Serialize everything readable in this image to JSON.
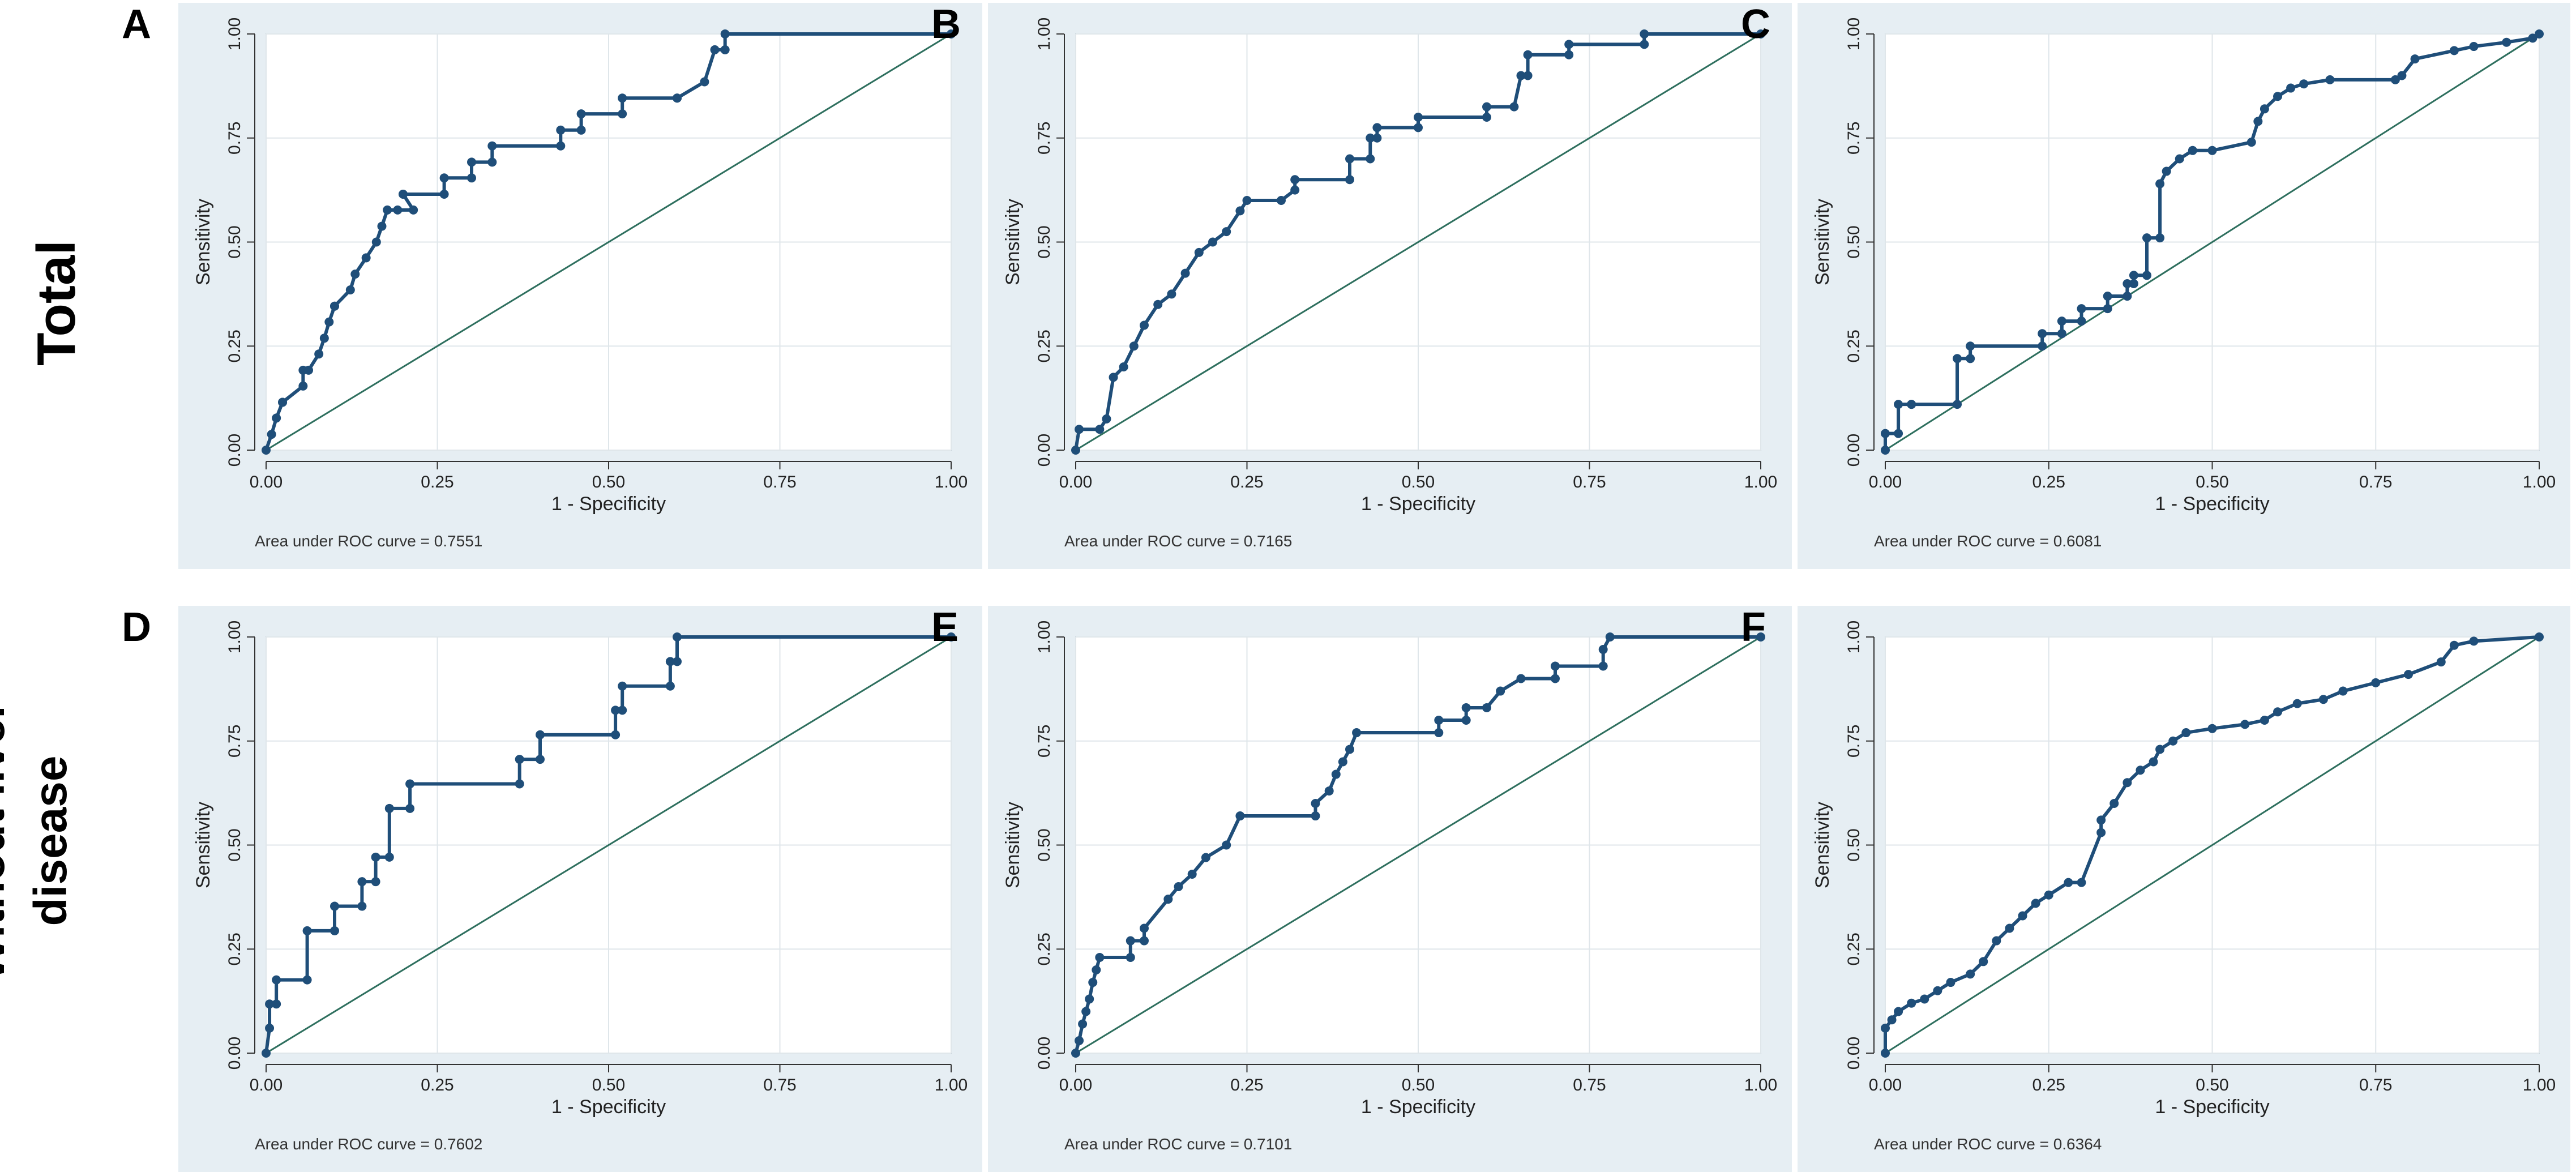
{
  "figure": {
    "row_labels": {
      "top": "Total",
      "bottom_line1": "Without liver",
      "bottom_line2": "disease"
    },
    "colors": {
      "panel_bg": "#e6eef3",
      "plot_bg": "#ffffff",
      "grid": "#dfe6ea",
      "axis": "#333333",
      "curve": "#1f4e79",
      "reference": "#2e6f5e"
    },
    "x_tick_labels": [
      "0.00",
      "0.25",
      "0.50",
      "0.75",
      "1.00"
    ],
    "y_tick_labels": [
      "0.00",
      "0.25",
      "0.50",
      "0.75",
      "1.00"
    ]
  },
  "chart_data": [
    {
      "panel": "A",
      "row": "Total",
      "type": "line",
      "title": "",
      "xlabel": "1 - Specificity",
      "ylabel": "Sensitivity",
      "xlim": [
        0,
        1
      ],
      "ylim": [
        0,
        1
      ],
      "grid": true,
      "auc_label": "Area under ROC curve = 0.7551",
      "series": [
        {
          "name": "ROC",
          "x": [
            0,
            0.008,
            0.015,
            0.024,
            0.024,
            0.054,
            0.054,
            0.062,
            0.077,
            0.085,
            0.092,
            0.1,
            0.1,
            0.123,
            0.13,
            0.146,
            0.161,
            0.169,
            0.177,
            0.192,
            0.215,
            0.2,
            0.2,
            0.26,
            0.26,
            0.3,
            0.3,
            0.33,
            0.33,
            0.43,
            0.43,
            0.46,
            0.46,
            0.52,
            0.52,
            0.6,
            0.6,
            0.64,
            0.655,
            0.67,
            0.67,
            1.0
          ],
          "y": [
            0,
            0.038,
            0.077,
            0.115,
            0.115,
            0.154,
            0.192,
            0.192,
            0.231,
            0.269,
            0.308,
            0.346,
            0.346,
            0.385,
            0.423,
            0.462,
            0.5,
            0.538,
            0.577,
            0.577,
            0.577,
            0.615,
            0.615,
            0.615,
            0.654,
            0.654,
            0.692,
            0.692,
            0.731,
            0.731,
            0.769,
            0.769,
            0.808,
            0.808,
            0.846,
            0.846,
            0.846,
            0.885,
            0.962,
            0.962,
            1.0,
            1.0
          ]
        },
        {
          "name": "Reference",
          "x": [
            0,
            1
          ],
          "y": [
            0,
            1
          ]
        }
      ]
    },
    {
      "panel": "B",
      "row": "Total",
      "type": "line",
      "title": "",
      "xlabel": "1 - Specificity",
      "ylabel": "Sensitivity",
      "xlim": [
        0,
        1
      ],
      "ylim": [
        0,
        1
      ],
      "grid": true,
      "auc_label": "Area under ROC curve = 0.7165",
      "series": [
        {
          "name": "ROC",
          "x": [
            0,
            0.005,
            0.035,
            0.045,
            0.055,
            0.07,
            0.085,
            0.1,
            0.12,
            0.14,
            0.16,
            0.18,
            0.2,
            0.22,
            0.24,
            0.25,
            0.3,
            0.32,
            0.32,
            0.4,
            0.4,
            0.43,
            0.43,
            0.44,
            0.44,
            0.5,
            0.5,
            0.6,
            0.6,
            0.64,
            0.65,
            0.66,
            0.66,
            0.72,
            0.72,
            0.83,
            0.83,
            1.0
          ],
          "y": [
            0,
            0.05,
            0.05,
            0.075,
            0.175,
            0.2,
            0.25,
            0.3,
            0.35,
            0.375,
            0.425,
            0.475,
            0.5,
            0.525,
            0.575,
            0.6,
            0.6,
            0.625,
            0.65,
            0.65,
            0.7,
            0.7,
            0.75,
            0.75,
            0.775,
            0.775,
            0.8,
            0.8,
            0.825,
            0.825,
            0.9,
            0.9,
            0.95,
            0.95,
            0.975,
            0.975,
            1.0,
            1.0
          ]
        },
        {
          "name": "Reference",
          "x": [
            0,
            1
          ],
          "y": [
            0,
            1
          ]
        }
      ]
    },
    {
      "panel": "C",
      "row": "Total",
      "type": "line",
      "title": "",
      "xlabel": "1 - Specificity",
      "ylabel": "Sensitivity",
      "xlim": [
        0,
        1
      ],
      "ylim": [
        0,
        1
      ],
      "grid": true,
      "auc_label": "Area under ROC curve = 0.6081",
      "series": [
        {
          "name": "ROC",
          "x": [
            0,
            0,
            0.02,
            0.02,
            0.04,
            0.04,
            0.11,
            0.11,
            0.13,
            0.13,
            0.24,
            0.24,
            0.27,
            0.27,
            0.3,
            0.3,
            0.34,
            0.34,
            0.37,
            0.37,
            0.38,
            0.38,
            0.4,
            0.4,
            0.42,
            0.42,
            0.43,
            0.45,
            0.47,
            0.5,
            0.56,
            0.57,
            0.58,
            0.6,
            0.62,
            0.64,
            0.68,
            0.78,
            0.79,
            0.81,
            0.87,
            0.9,
            0.95,
            0.99,
            1.0
          ],
          "y": [
            0,
            0.04,
            0.04,
            0.11,
            0.11,
            0.11,
            0.11,
            0.22,
            0.22,
            0.25,
            0.25,
            0.28,
            0.28,
            0.31,
            0.31,
            0.34,
            0.34,
            0.37,
            0.37,
            0.4,
            0.4,
            0.42,
            0.42,
            0.51,
            0.51,
            0.64,
            0.67,
            0.7,
            0.72,
            0.72,
            0.74,
            0.79,
            0.82,
            0.85,
            0.87,
            0.88,
            0.89,
            0.89,
            0.9,
            0.94,
            0.96,
            0.97,
            0.98,
            0.99,
            1.0
          ]
        },
        {
          "name": "Reference",
          "x": [
            0,
            1
          ],
          "y": [
            0,
            1
          ]
        }
      ]
    },
    {
      "panel": "D",
      "row": "Without liver disease",
      "type": "line",
      "title": "",
      "xlabel": "1 - Specificity",
      "ylabel": "Sensitivity",
      "xlim": [
        0,
        1
      ],
      "ylim": [
        0,
        1
      ],
      "grid": true,
      "auc_label": "Area under ROC curve = 0.7602",
      "series": [
        {
          "name": "ROC",
          "x": [
            0,
            0.005,
            0.005,
            0.015,
            0.015,
            0.06,
            0.06,
            0.1,
            0.1,
            0.14,
            0.14,
            0.16,
            0.16,
            0.18,
            0.18,
            0.21,
            0.21,
            0.37,
            0.37,
            0.4,
            0.4,
            0.51,
            0.51,
            0.52,
            0.52,
            0.59,
            0.59,
            0.6,
            0.6,
            1.0
          ],
          "y": [
            0,
            0.06,
            0.118,
            0.118,
            0.176,
            0.176,
            0.294,
            0.294,
            0.353,
            0.353,
            0.412,
            0.412,
            0.471,
            0.471,
            0.588,
            0.588,
            0.647,
            0.647,
            0.706,
            0.706,
            0.765,
            0.765,
            0.824,
            0.824,
            0.882,
            0.882,
            0.941,
            0.941,
            1.0,
            1.0
          ]
        },
        {
          "name": "Reference",
          "x": [
            0,
            1
          ],
          "y": [
            0,
            1
          ]
        }
      ]
    },
    {
      "panel": "E",
      "row": "Without liver disease",
      "type": "line",
      "title": "",
      "xlabel": "1 - Specificity",
      "ylabel": "Sensitivity",
      "xlim": [
        0,
        1
      ],
      "ylim": [
        0,
        1
      ],
      "grid": true,
      "auc_label": "Area under ROC curve = 0.7101",
      "series": [
        {
          "name": "ROC",
          "x": [
            0,
            0.005,
            0.01,
            0.015,
            0.02,
            0.025,
            0.03,
            0.035,
            0.08,
            0.08,
            0.1,
            0.1,
            0.135,
            0.15,
            0.17,
            0.19,
            0.22,
            0.24,
            0.35,
            0.35,
            0.37,
            0.38,
            0.39,
            0.4,
            0.41,
            0.53,
            0.53,
            0.57,
            0.57,
            0.6,
            0.62,
            0.65,
            0.7,
            0.7,
            0.77,
            0.77,
            0.78,
            1.0
          ],
          "y": [
            0,
            0.03,
            0.07,
            0.1,
            0.13,
            0.17,
            0.2,
            0.23,
            0.23,
            0.27,
            0.27,
            0.3,
            0.37,
            0.4,
            0.43,
            0.47,
            0.5,
            0.57,
            0.57,
            0.6,
            0.63,
            0.67,
            0.7,
            0.73,
            0.77,
            0.77,
            0.8,
            0.8,
            0.83,
            0.83,
            0.87,
            0.9,
            0.9,
            0.93,
            0.93,
            0.97,
            1.0,
            1.0
          ]
        },
        {
          "name": "Reference",
          "x": [
            0,
            1
          ],
          "y": [
            0,
            1
          ]
        }
      ]
    },
    {
      "panel": "F",
      "row": "Without liver disease",
      "type": "line",
      "title": "",
      "xlabel": "1 - Specificity",
      "ylabel": "Sensitivity",
      "xlim": [
        0,
        1
      ],
      "ylim": [
        0,
        1
      ],
      "grid": true,
      "auc_label": "Area under ROC curve = 0.6364",
      "series": [
        {
          "name": "ROC",
          "x": [
            0,
            0,
            0.01,
            0.02,
            0.04,
            0.06,
            0.08,
            0.1,
            0.13,
            0.15,
            0.17,
            0.19,
            0.21,
            0.23,
            0.25,
            0.28,
            0.3,
            0.33,
            0.33,
            0.35,
            0.37,
            0.39,
            0.41,
            0.42,
            0.44,
            0.46,
            0.5,
            0.55,
            0.58,
            0.6,
            0.63,
            0.67,
            0.7,
            0.75,
            0.8,
            0.85,
            0.87,
            0.9,
            1.0
          ],
          "y": [
            0,
            0.06,
            0.08,
            0.1,
            0.12,
            0.13,
            0.15,
            0.17,
            0.19,
            0.22,
            0.27,
            0.3,
            0.33,
            0.36,
            0.38,
            0.41,
            0.41,
            0.53,
            0.56,
            0.6,
            0.65,
            0.68,
            0.7,
            0.73,
            0.75,
            0.77,
            0.78,
            0.79,
            0.8,
            0.82,
            0.84,
            0.85,
            0.87,
            0.89,
            0.91,
            0.94,
            0.98,
            0.99,
            1.0
          ]
        },
        {
          "name": "Reference",
          "x": [
            0,
            1
          ],
          "y": [
            0,
            1
          ]
        }
      ]
    }
  ]
}
